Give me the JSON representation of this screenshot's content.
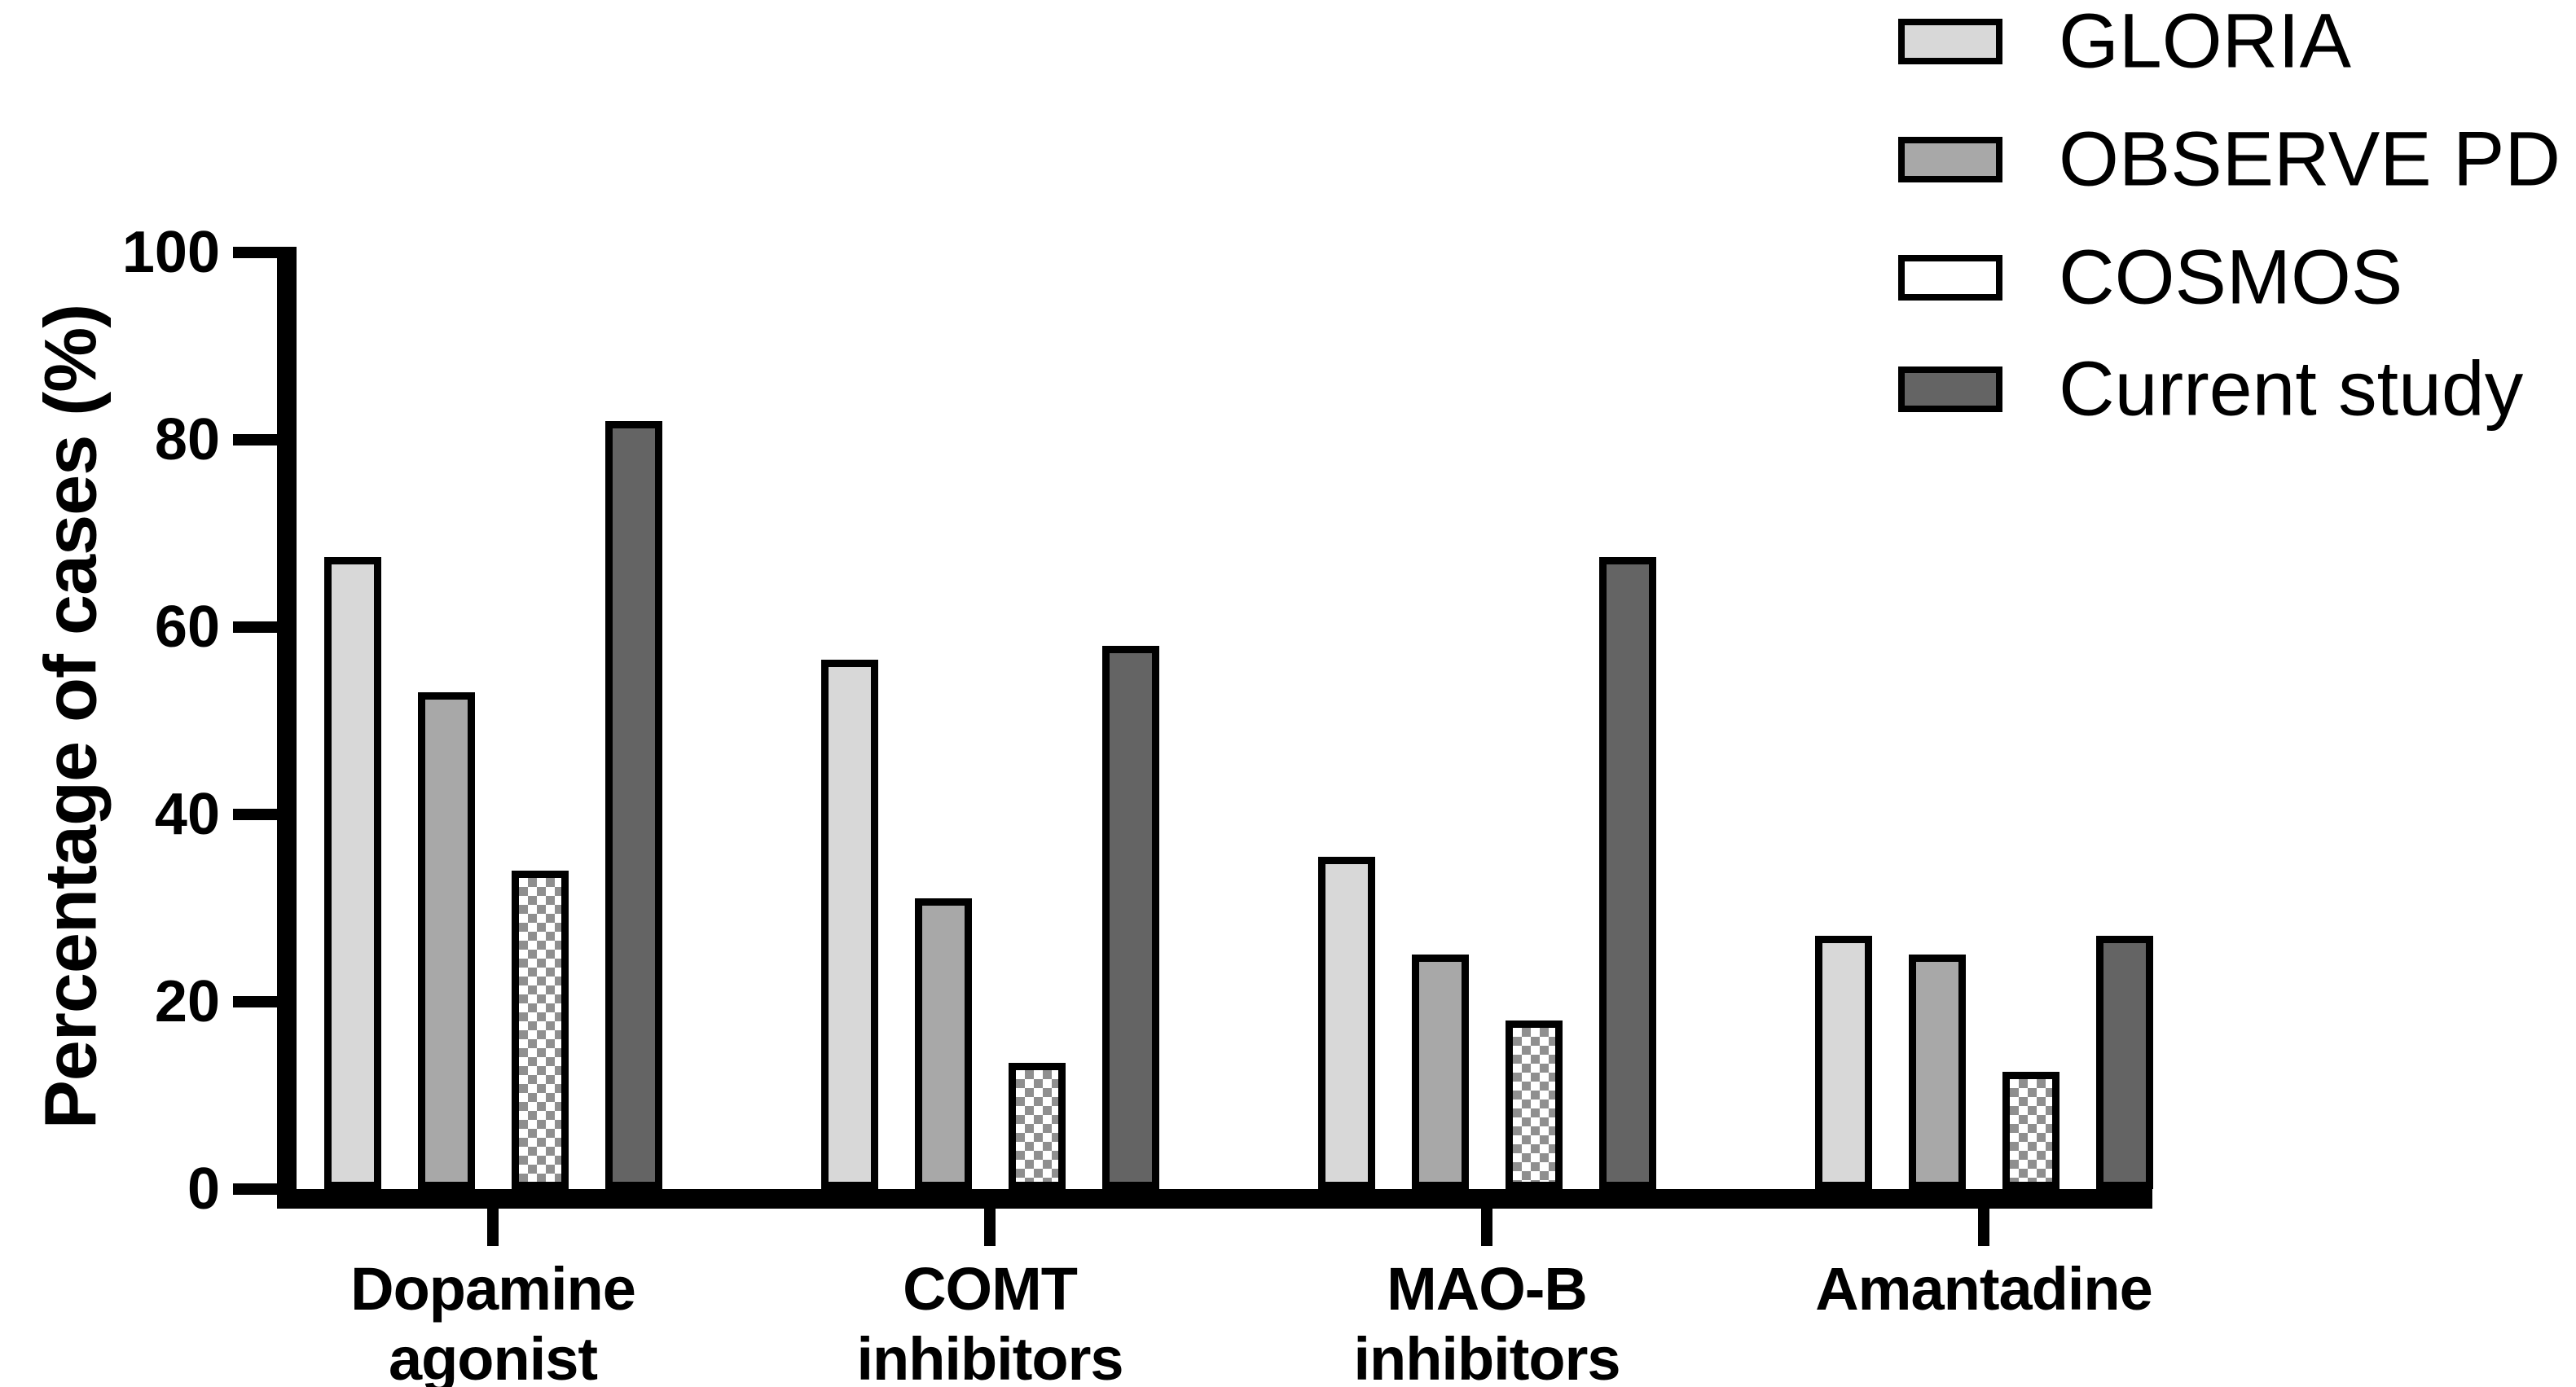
{
  "chart_data": {
    "type": "bar",
    "title": "",
    "xlabel": "",
    "ylabel": "Percentage of cases (%)",
    "ylim": [
      0,
      100
    ],
    "yticks": [
      0,
      20,
      40,
      60,
      80,
      100
    ],
    "grid": false,
    "legend_position": "top-right",
    "categories": [
      "Dopamine agonist",
      "COMT inhibitors",
      "MAO-B inhibitors",
      "Amantadine"
    ],
    "category_label_lines": [
      [
        "Dopamine",
        "agonist"
      ],
      [
        "COMT",
        "inhibitors"
      ],
      [
        "MAO-B",
        "inhibitors"
      ],
      [
        "Amantadine"
      ]
    ],
    "series": [
      {
        "name": "GLORIA",
        "pattern": "solid",
        "fill": "#d8d8d8",
        "values": [
          67.5,
          56.5,
          35.5,
          27
        ]
      },
      {
        "name": "OBSERVE PD",
        "pattern": "solid",
        "fill": "#a8a8a8",
        "values": [
          53,
          31,
          25,
          25
        ]
      },
      {
        "name": "COSMOS",
        "pattern": "checker",
        "fill": "#ffffff",
        "pattern_color": "#8f8f8f",
        "values": [
          34,
          13.5,
          18,
          12.5
        ]
      },
      {
        "name": "Current study",
        "pattern": "solid",
        "fill": "#646464",
        "values": [
          82,
          58,
          67.5,
          27
        ]
      }
    ],
    "bar_border_color": "#000000",
    "axis_color": "#000000",
    "text_color": "#000000"
  }
}
